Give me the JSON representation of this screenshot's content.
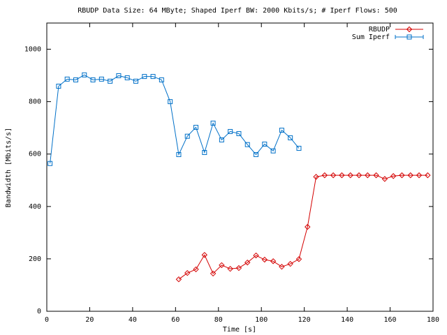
{
  "chart_data": {
    "type": "line",
    "title": "RBUDP Data Size: 64 MByte; Shaped Iperf BW: 2000 Kbits/s; # Iperf Flows: 500",
    "x_label": "Time [s]",
    "y_label": "Bandwidth [Mbits/s]",
    "xlim": [
      0,
      180
    ],
    "ylim": [
      0,
      1100
    ],
    "xticks": [
      0,
      20,
      40,
      60,
      80,
      100,
      120,
      140,
      160,
      180
    ],
    "yticks": [
      0,
      200,
      400,
      600,
      800,
      1000
    ],
    "legend": "top-right",
    "series": [
      {
        "name": "RBUDP",
        "color": "#d40000",
        "marker": "diamond",
        "x": [
          61.5,
          65.5,
          69.5,
          73.5,
          77.5,
          81.5,
          85.5,
          89.5,
          93.5,
          97.5,
          101.5,
          105.5,
          109.5,
          113.5,
          117.5,
          121.5,
          125.5,
          129.5,
          133.5,
          137.5,
          141.5,
          145.5,
          149.5,
          153.5,
          157.5,
          161.5,
          165.5,
          169.5,
          173.5,
          177.5
        ],
        "values": [
          122,
          146,
          160,
          215,
          144,
          176,
          162,
          165,
          186,
          213,
          197,
          191,
          170,
          181,
          199,
          322,
          513,
          519,
          519,
          519,
          519,
          519,
          519,
          519,
          505,
          516,
          519,
          519,
          519,
          519
        ]
      },
      {
        "name": "Sum Iperf",
        "color": "#0070c8",
        "marker": "square",
        "x": [
          1.5,
          5.5,
          9.5,
          13.5,
          17.5,
          21.5,
          25.5,
          29.5,
          33.5,
          37.5,
          41.5,
          45.5,
          49.5,
          53.5,
          57.5,
          61.5,
          65.5,
          69.5,
          73.5,
          77.5,
          81.5,
          85.5,
          89.5,
          93.5,
          97.5,
          101.5,
          105.5,
          109.5,
          113.5,
          117.5
        ],
        "values": [
          564,
          859,
          886,
          883,
          902,
          883,
          886,
          878,
          899,
          891,
          878,
          896,
          896,
          883,
          800,
          598,
          668,
          702,
          606,
          718,
          654,
          686,
          678,
          636,
          598,
          638,
          612,
          691,
          662,
          622
        ]
      }
    ]
  }
}
